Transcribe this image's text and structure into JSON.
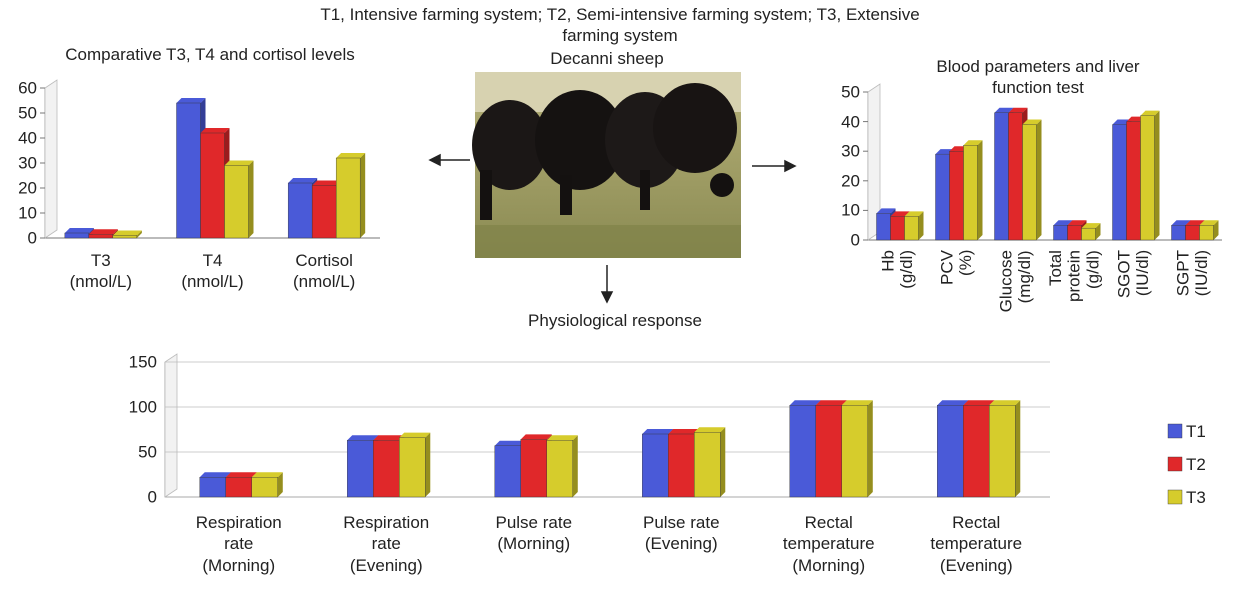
{
  "caption": "T1, Intensive farming system; T2, Semi-intensive farming system; T3, Extensive farming system",
  "photo_label": "Decanni sheep",
  "response_label": "Physiological response",
  "chart_data": [
    {
      "type": "bar",
      "title": "Comparative T3, T4 and cortisol levels",
      "categories": [
        "T3\n(nmol/L)",
        "T4\n(nmol/L)",
        "Cortisol\n(nmol/L)"
      ],
      "series": [
        {
          "color": "#4a5ad8",
          "values": [
            2,
            54,
            22
          ]
        },
        {
          "color": "#e0282a",
          "values": [
            1.5,
            42,
            21
          ]
        },
        {
          "color": "#d6cc2c",
          "values": [
            1,
            29,
            32
          ]
        }
      ],
      "ylim": [
        0,
        60
      ],
      "yticks": [
        0,
        10,
        20,
        30,
        40,
        50,
        60
      ],
      "grid": false
    },
    {
      "type": "bar",
      "title": "Blood parameters and liver function test",
      "categories": [
        "Hb\n(g/dl)",
        "PCV\n(%)",
        "Glucose\n(mg/dl)",
        "Total\nprotein\n(g/dl)",
        "SGOT\n(IU/dl)",
        "SGPT\n(IU/dl)"
      ],
      "series": [
        {
          "color": "#4a5ad8",
          "values": [
            9,
            29,
            43,
            5,
            39,
            5
          ]
        },
        {
          "color": "#e0282a",
          "values": [
            8,
            30,
            43,
            5,
            40,
            5
          ]
        },
        {
          "color": "#d6cc2c",
          "values": [
            8,
            32,
            39,
            4,
            42,
            5
          ]
        }
      ],
      "ylim": [
        0,
        50
      ],
      "yticks": [
        0,
        10,
        20,
        30,
        40,
        50
      ],
      "grid": false
    },
    {
      "type": "bar",
      "categories": [
        "Respiration\nrate\n(Morning)",
        "Respiration\nrate\n(Evening)",
        "Pulse rate\n(Morning)",
        "Pulse rate\n(Evening)",
        "Rectal\ntemperature\n(Morning)",
        "Rectal\ntemperature\n(Evening)"
      ],
      "series": [
        {
          "name": "T1",
          "color": "#4a5ad8",
          "values": [
            22,
            63,
            57,
            70,
            102,
            102
          ]
        },
        {
          "name": "T2",
          "color": "#e0282a",
          "values": [
            22,
            63,
            64,
            70,
            102,
            102
          ]
        },
        {
          "name": "T3",
          "color": "#d6cc2c",
          "values": [
            22,
            66,
            63,
            72,
            102,
            102
          ]
        }
      ],
      "ylim": [
        0,
        150
      ],
      "yticks": [
        0,
        50,
        100,
        150
      ],
      "grid": true,
      "legend": "right"
    }
  ]
}
